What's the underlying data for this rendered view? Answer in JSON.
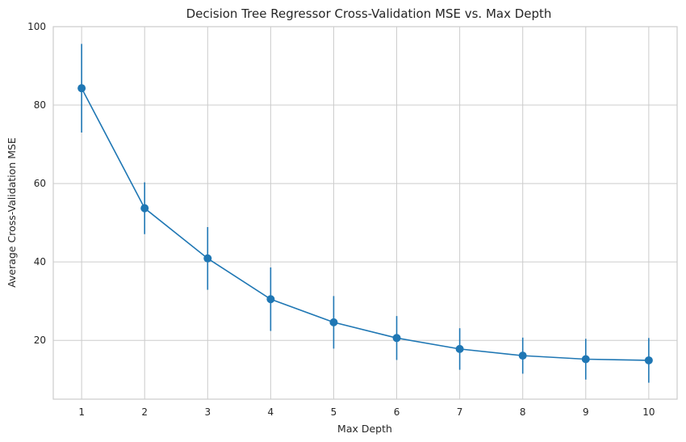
{
  "chart_data": {
    "type": "line",
    "title": "Decision Tree Regressor Cross-Validation MSE vs. Max Depth",
    "xlabel": "Max Depth",
    "ylabel": "Average Cross-Validation MSE",
    "x": [
      1,
      2,
      3,
      4,
      5,
      6,
      7,
      8,
      9,
      10
    ],
    "xticks": [
      "1",
      "2",
      "3",
      "4",
      "5",
      "6",
      "7",
      "8",
      "9",
      "10"
    ],
    "yticks": [
      "20",
      "40",
      "60",
      "80",
      "100"
    ],
    "ylim": [
      5,
      100
    ],
    "xlim": [
      0.55,
      10.45
    ],
    "grid": true,
    "series": [
      {
        "values": [
          84.3,
          53.7,
          40.9,
          30.5,
          24.6,
          20.6,
          17.8,
          16.1,
          15.2,
          14.9
        ],
        "error": [
          11.3,
          6.6,
          8.0,
          8.1,
          6.7,
          5.6,
          5.3,
          4.6,
          5.2,
          5.7
        ],
        "color": "#1f77b4"
      }
    ]
  }
}
